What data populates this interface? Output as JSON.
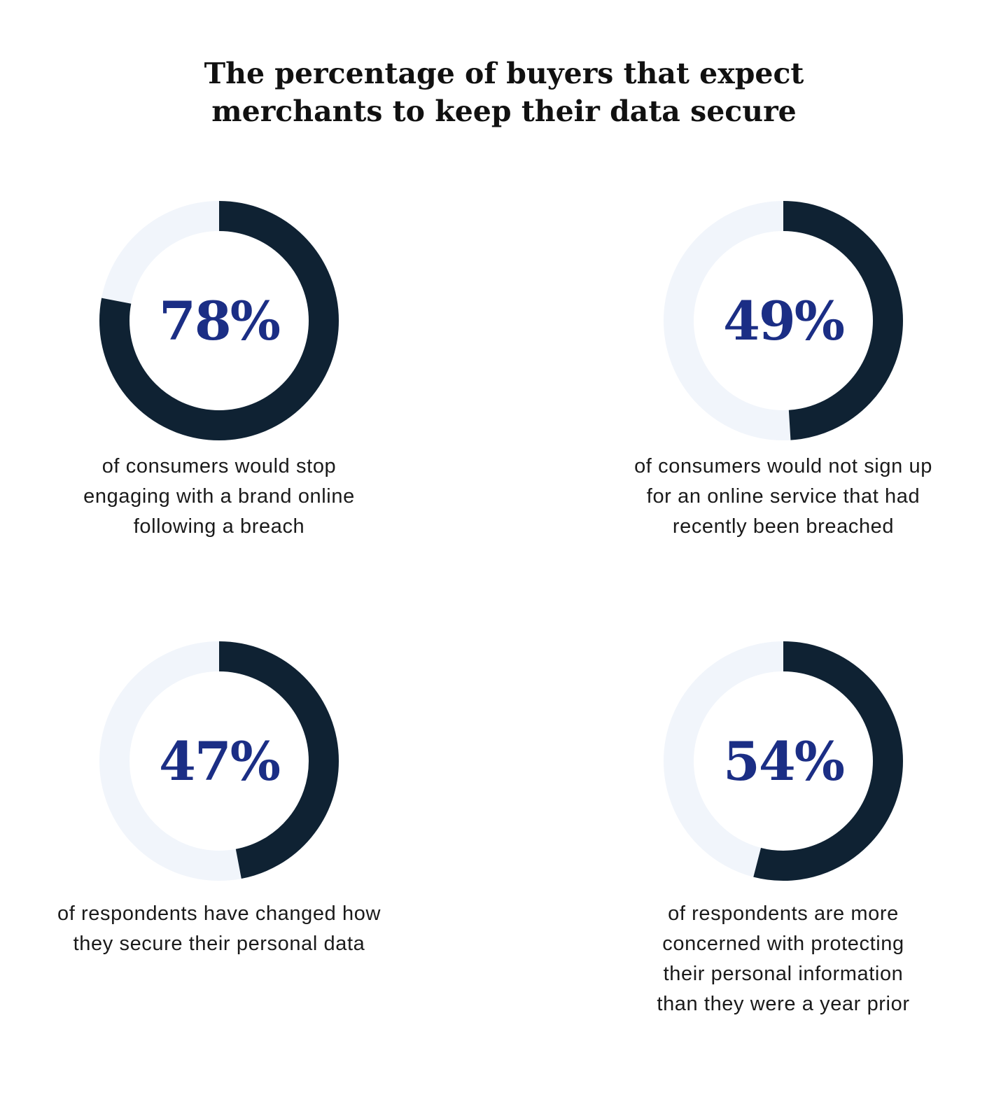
{
  "title": {
    "line1": "The percentage of buyers that expect",
    "line2": "merchants to keep their data secure"
  },
  "colors": {
    "filled": "#0f2233",
    "track": "#f1f5fb",
    "percent_text": "#1b2e85"
  },
  "chart_data": [
    {
      "type": "pie",
      "value": 78,
      "max": 100,
      "label": "78%",
      "caption": [
        "of consumers would stop",
        "engaging with a brand online",
        "following a breach"
      ]
    },
    {
      "type": "pie",
      "value": 49,
      "max": 100,
      "label": "49%",
      "caption": [
        "of consumers would not sign up",
        "for an online service that had",
        "recently been breached"
      ]
    },
    {
      "type": "pie",
      "value": 47,
      "max": 100,
      "label": "47%",
      "caption": [
        "of respondents have changed how",
        "they secure their personal data"
      ]
    },
    {
      "type": "pie",
      "value": 54,
      "max": 100,
      "label": "54%",
      "caption": [
        "of respondents are more",
        "concerned with protecting",
        "their personal information",
        "than they were a year prior"
      ]
    }
  ]
}
